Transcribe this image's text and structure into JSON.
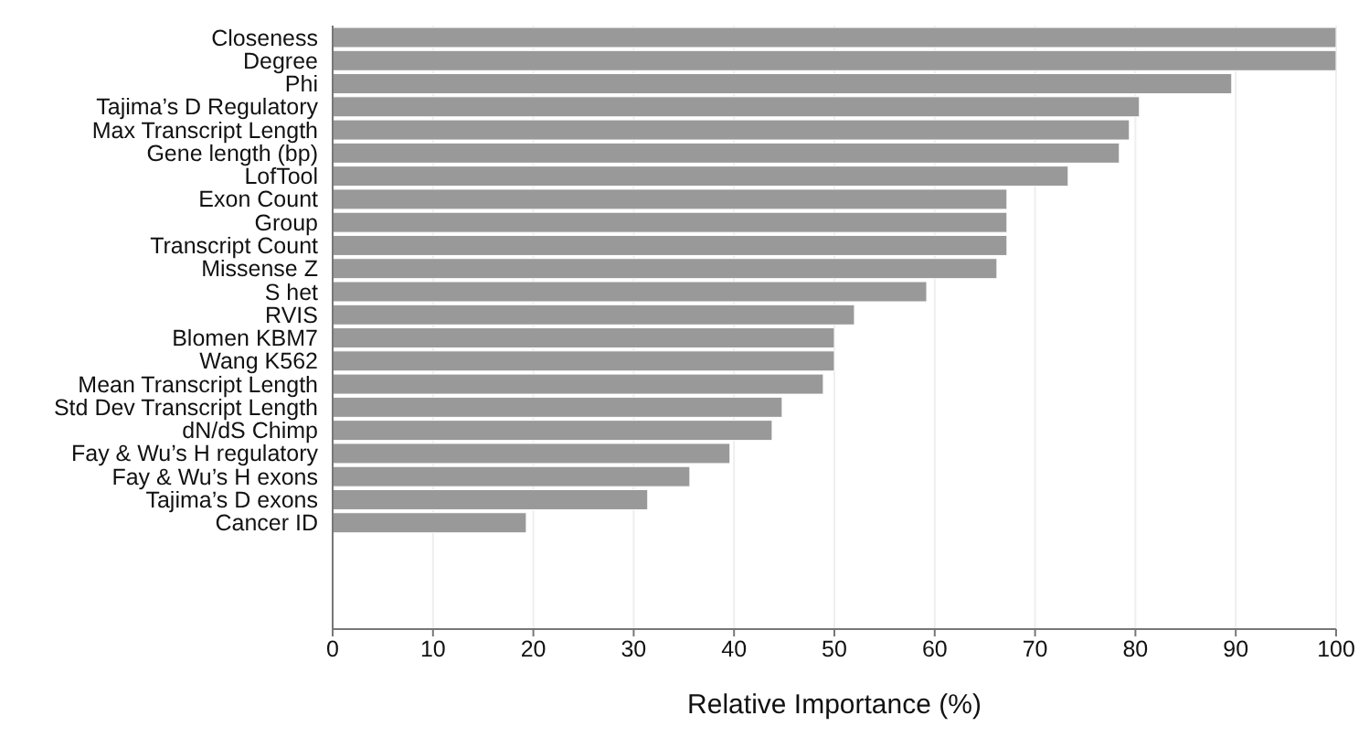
{
  "chart_data": {
    "type": "bar",
    "orientation": "horizontal",
    "xlabel": "Relative Importance (%)",
    "categories": [
      "Closeness",
      "Degree",
      "Phi",
      "Tajima’s D Regulatory",
      "Max Transcript Length",
      "Gene length (bp)",
      "LofTool",
      "Exon Count",
      "Group",
      "Transcript Count",
      "Missense Z",
      "S het",
      "RVIS",
      "Blomen KBM7",
      "Wang K562",
      "Mean Transcript Length",
      "Std Dev Transcript Length",
      "dN/dS Chimp",
      "Fay & Wu’s H regulatory",
      "Fay & Wu’s H exons",
      "Tajima’s D exons",
      "Cancer ID"
    ],
    "values": [
      100,
      100,
      89.6,
      80.4,
      79.4,
      78.4,
      73.3,
      67.2,
      67.2,
      67.2,
      66.2,
      59.2,
      52,
      50,
      50,
      48.9,
      44.8,
      43.8,
      39.6,
      35.6,
      31.4,
      19.3
    ],
    "color": "#999999",
    "xlim": [
      0,
      100
    ],
    "xticks": [
      0,
      10,
      20,
      30,
      40,
      50,
      60,
      70,
      80,
      90,
      100
    ],
    "grid": "x"
  }
}
